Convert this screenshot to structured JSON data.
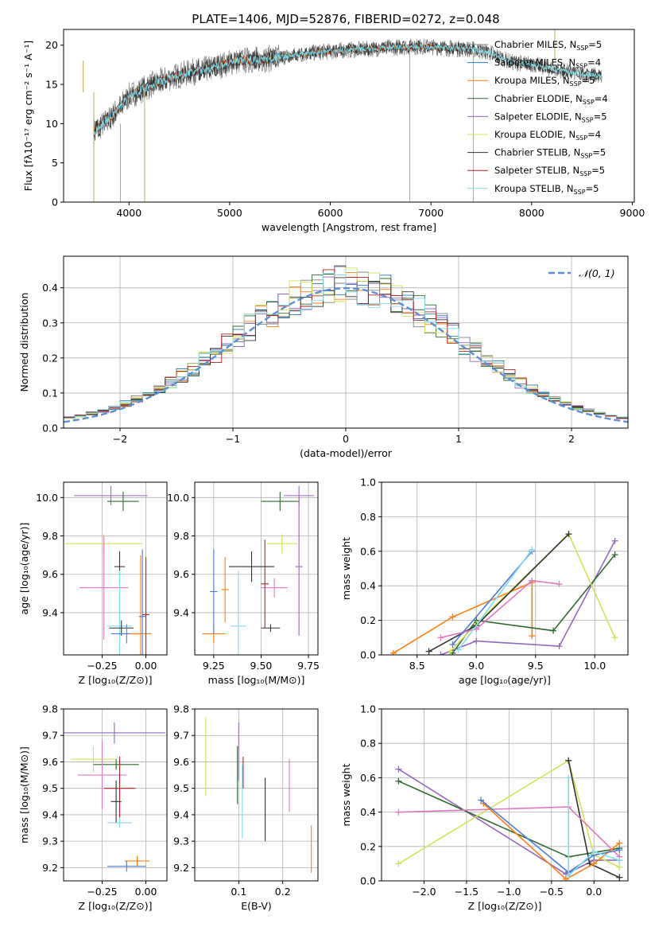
{
  "figure_title": "PLATE=1406, MJD=52876, FIBERID=0272, z=0.048",
  "series_styles": [
    {
      "name": "Chabrier MILES",
      "nssp": "5",
      "color": "#808080"
    },
    {
      "name": "Salpeter MILES",
      "nssp": "4",
      "color": "#1f77b4"
    },
    {
      "name": "Kroupa MILES",
      "nssp": "5",
      "color": "#ff7f0e"
    },
    {
      "name": "Chabrier ELODIE",
      "nssp": "4",
      "color": "#2e6b2e"
    },
    {
      "name": "Salpeter ELODIE",
      "nssp": "5",
      "color": "#9467bd"
    },
    {
      "name": "Kroupa ELODIE",
      "nssp": "4",
      "color": "#d4e157"
    },
    {
      "name": "Chabrier STELIB",
      "nssp": "5",
      "color": "#333333"
    },
    {
      "name": "Salpeter STELIB",
      "nssp": "5",
      "color": "#b22222"
    },
    {
      "name": "Kroupa STELIB",
      "nssp": "5",
      "color": "#80deea"
    }
  ],
  "chart_data": [
    {
      "id": "spectrum",
      "type": "line",
      "xlabel": "wavelength [Angstrom, rest frame]",
      "ylabel": "Flux [fλ10⁻¹⁷ erg cm⁻² s⁻¹ A⁻¹]",
      "xlim": [
        3350,
        9020
      ],
      "ylim": [
        0,
        22
      ],
      "xticks": [
        4000,
        5000,
        6000,
        7000,
        8000,
        9000
      ],
      "yticks": [
        0,
        5,
        10,
        15,
        20
      ],
      "grid": false,
      "legend": "top-right",
      "x": [
        3650,
        3800,
        4000,
        4200,
        4400,
        4600,
        4800,
        5000,
        5200,
        5400,
        5600,
        5800,
        6000,
        6200,
        6400,
        6600,
        6800,
        7000,
        7200,
        7400,
        7600,
        7800,
        8000,
        8200,
        8400,
        8600,
        8700
      ],
      "y": [
        9.0,
        10.5,
        13.5,
        14.8,
        15.8,
        16.5,
        17.0,
        17.8,
        18.1,
        18.3,
        18.6,
        19.0,
        19.2,
        19.4,
        19.5,
        19.7,
        19.8,
        19.8,
        19.6,
        19.5,
        19.0,
        17.8,
        17.6,
        17.0,
        16.5,
        16.2,
        16.0
      ]
    },
    {
      "id": "residuals",
      "type": "line",
      "xlabel": "(data-model)/error",
      "ylabel": "Normed distribution",
      "xlim": [
        -2.5,
        2.5
      ],
      "ylim": [
        0,
        0.49
      ],
      "xticks": [
        -2,
        -1,
        0,
        1,
        2
      ],
      "yticks": [
        0.0,
        0.1,
        0.2,
        0.3,
        0.4
      ],
      "grid": true,
      "legend": "top-right",
      "legend_label": "𝒩(0, 1)",
      "gaussian": {
        "mu": 0,
        "sigma": 1
      }
    },
    {
      "id": "age-vs-z",
      "type": "scatter",
      "error_bars": true,
      "xlabel": "Z [log₁₀(Z/Z⊙)]",
      "ylabel": "age  [log₁₀(age/yr)]",
      "xlim": [
        -0.47,
        0.12
      ],
      "ylim": [
        9.18,
        10.08
      ],
      "xticks": [
        -0.25,
        0.0
      ],
      "yticks": [
        9.4,
        9.6,
        9.8,
        10.0
      ],
      "grid": true,
      "points": [
        {
          "x": -0.2,
          "y": 10.01,
          "xe": 0.21,
          "ye": 0.05,
          "color": "#9467bd"
        },
        {
          "x": -0.13,
          "y": 9.98,
          "xe": 0.09,
          "ye": 0.05,
          "color": "#2e6b2e"
        },
        {
          "x": -0.24,
          "y": 9.76,
          "xe": 0.22,
          "ye": 0.05,
          "color": "#d4e157"
        },
        {
          "x": -0.15,
          "y": 9.64,
          "xe": 0.03,
          "ye": 0.08,
          "color": "#333333"
        },
        {
          "x": -0.24,
          "y": 9.53,
          "xe": 0.14,
          "ye": 0.27,
          "color": "#e377c2"
        },
        {
          "x": -0.15,
          "y": 9.33,
          "xe": 0.07,
          "ye": 0.29,
          "color": "#80deea"
        },
        {
          "x": -0.14,
          "y": 9.32,
          "xe": 0.07,
          "ye": 0.04,
          "color": "#333333"
        },
        {
          "x": -0.11,
          "y": 9.29,
          "xe": 0.09,
          "ye": 0.05,
          "color": "#4c7bd9"
        },
        {
          "x": -0.03,
          "y": 9.29,
          "xe": 0.06,
          "ye": 0.41,
          "color": "#ff7f0e"
        },
        {
          "x": -0.02,
          "y": 9.38,
          "xe": 0.02,
          "ye": 0.35,
          "color": "#4c7bd9"
        },
        {
          "x": 0.0,
          "y": 9.39,
          "xe": 0.02,
          "ye": 0.3,
          "color": "#b22222"
        }
      ]
    },
    {
      "id": "age-vs-mass",
      "type": "scatter",
      "error_bars": true,
      "xlabel": "mass [log₁₀(M/M⊙)]",
      "ylabel": "",
      "xlim": [
        9.15,
        9.8
      ],
      "ylim": [
        9.18,
        10.08
      ],
      "xticks": [
        9.25,
        9.5,
        9.75
      ],
      "yticks": [
        9.4,
        9.6,
        9.8,
        10.0
      ],
      "grid": true,
      "points": [
        {
          "x": 9.7,
          "y": 10.01,
          "xe": 0.08,
          "ye": 0.05,
          "color": "#9467bd"
        },
        {
          "x": 9.6,
          "y": 9.98,
          "xe": 0.1,
          "ye": 0.05,
          "color": "#2e6b2e"
        },
        {
          "x": 9.61,
          "y": 9.76,
          "xe": 0.08,
          "ye": 0.05,
          "color": "#d4e157"
        },
        {
          "x": 9.45,
          "y": 9.64,
          "xe": 0.12,
          "ye": 0.08,
          "color": "#333333"
        },
        {
          "x": 9.57,
          "y": 9.53,
          "xe": 0.07,
          "ye": 0.05,
          "color": "#e377c2"
        },
        {
          "x": 9.38,
          "y": 9.33,
          "xe": 0.04,
          "ye": 0.29,
          "color": "#80deea"
        },
        {
          "x": 9.55,
          "y": 9.32,
          "xe": 0.05,
          "ye": 0.02,
          "color": "#333333"
        },
        {
          "x": 9.25,
          "y": 9.29,
          "xe": 0.06,
          "ye": 0.05,
          "color": "#ff7f0e"
        },
        {
          "x": 9.25,
          "y": 9.51,
          "xe": 0.02,
          "ye": 0.22,
          "color": "#4c7bd9"
        },
        {
          "x": 9.31,
          "y": 9.52,
          "xe": 0.02,
          "ye": 0.17,
          "color": "#ff7f0e"
        },
        {
          "x": 9.52,
          "y": 9.55,
          "xe": 0.02,
          "ye": 0.23,
          "color": "#b22222"
        },
        {
          "x": 9.7,
          "y": 9.64,
          "xe": 0.02,
          "ye": 0.36,
          "color": "#9467bd"
        }
      ]
    },
    {
      "id": "weight-vs-age",
      "type": "line",
      "xlabel": "age  [log₁₀(age/yr)]",
      "ylabel": "mass weight",
      "xlim": [
        8.2,
        10.28
      ],
      "ylim": [
        0,
        1
      ],
      "xticks": [
        8.5,
        9.0,
        9.5,
        10.0
      ],
      "yticks": [
        0.0,
        0.2,
        0.4,
        0.6,
        0.8,
        1.0
      ],
      "grid": true,
      "series": [
        {
          "color": "#ff7f0e",
          "x": [
            8.3,
            8.8,
            9.47,
            9.47
          ],
          "y": [
            0.01,
            0.22,
            0.42,
            0.11
          ]
        },
        {
          "color": "#9467bd",
          "x": [
            8.7,
            9.0,
            9.7,
            10.17
          ],
          "y": [
            0.0,
            0.08,
            0.05,
            0.66
          ]
        },
        {
          "color": "#2e6b2e",
          "x": [
            8.8,
            9.0,
            9.65,
            10.17
          ],
          "y": [
            0.01,
            0.2,
            0.14,
            0.58
          ]
        },
        {
          "color": "#d4e157",
          "x": [
            8.78,
            9.0,
            9.78,
            10.17
          ],
          "y": [
            0.02,
            0.18,
            0.7,
            0.1
          ]
        },
        {
          "color": "#333333",
          "x": [
            8.6,
            9.0,
            9.78
          ],
          "y": [
            0.02,
            0.17,
            0.7
          ]
        },
        {
          "color": "#e377c2",
          "x": [
            8.7,
            9.0,
            9.47,
            9.7
          ],
          "y": [
            0.1,
            0.15,
            0.43,
            0.41
          ]
        },
        {
          "color": "#4c7bd9",
          "x": [
            8.8,
            9.47
          ],
          "y": [
            0.06,
            0.6
          ]
        },
        {
          "color": "#80deea",
          "x": [
            8.85,
            9.47
          ],
          "y": [
            0.03,
            0.61
          ]
        }
      ]
    },
    {
      "id": "mass-vs-z",
      "type": "scatter",
      "error_bars": true,
      "xlabel": "Z [log₁₀(Z/Z⊙)]",
      "ylabel": "mass [log₁₀(M/M⊙)]",
      "xlim": [
        -0.47,
        0.12
      ],
      "ylim": [
        9.15,
        9.8
      ],
      "xticks": [
        -0.25,
        0.0
      ],
      "yticks": [
        9.2,
        9.3,
        9.4,
        9.5,
        9.6,
        9.7,
        9.8
      ],
      "grid": true,
      "points": [
        {
          "x": -0.18,
          "y": 9.71,
          "xe": 0.29,
          "ye": 0.04,
          "color": "#9467bd"
        },
        {
          "x": -0.3,
          "y": 9.61,
          "xe": 0.13,
          "ye": 0.05,
          "color": "#d4e157"
        },
        {
          "x": -0.17,
          "y": 9.59,
          "xe": 0.13,
          "ye": 0.02,
          "color": "#2e6b2e"
        },
        {
          "x": -0.25,
          "y": 9.55,
          "xe": 0.14,
          "ye": 0.13,
          "color": "#e377c2"
        },
        {
          "x": -0.15,
          "y": 9.5,
          "xe": 0.09,
          "ye": 0.12,
          "color": "#b22222"
        },
        {
          "x": -0.17,
          "y": 9.45,
          "xe": 0.03,
          "ye": 0.08,
          "color": "#333333"
        },
        {
          "x": -0.15,
          "y": 9.37,
          "xe": 0.07,
          "ye": 0.02,
          "color": "#80deea"
        },
        {
          "x": -0.05,
          "y": 9.225,
          "xe": 0.07,
          "ye": 0.02,
          "color": "#ff7f0e"
        },
        {
          "x": -0.11,
          "y": 9.205,
          "xe": 0.11,
          "ye": 0.02,
          "color": "#4c7bd9"
        }
      ]
    },
    {
      "id": "mass-vs-ebv",
      "type": "scatter",
      "error_bars": true,
      "xlabel": "E(B-V)",
      "ylabel": "",
      "xlim": [
        0.0,
        0.28
      ],
      "ylim": [
        9.15,
        9.8
      ],
      "xticks": [
        0.1,
        0.2
      ],
      "yticks": [
        9.2,
        9.3,
        9.4,
        9.5,
        9.6,
        9.7,
        9.8
      ],
      "grid": true,
      "points": [
        {
          "x": 0.025,
          "y": 9.62,
          "xe": 0,
          "ye": 0.15,
          "color": "#d4e157"
        },
        {
          "x": 0.1,
          "y": 9.64,
          "xe": 0,
          "ye": 0.11,
          "color": "#9467bd"
        },
        {
          "x": 0.097,
          "y": 9.55,
          "xe": 0,
          "ye": 0.11,
          "color": "#2e6b2e"
        },
        {
          "x": 0.11,
          "y": 9.56,
          "xe": 0,
          "ye": 0.06,
          "color": "#b22222"
        },
        {
          "x": 0.108,
          "y": 9.45,
          "xe": 0,
          "ye": 0.14,
          "color": "#80deea"
        },
        {
          "x": 0.16,
          "y": 9.42,
          "xe": 0,
          "ye": 0.12,
          "color": "#333333"
        },
        {
          "x": 0.215,
          "y": 9.51,
          "xe": 0,
          "ye": 0.1,
          "color": "#e377c2"
        },
        {
          "x": 0.265,
          "y": 9.27,
          "xe": 0,
          "ye": 0.09,
          "color": "#ff7f0e"
        }
      ]
    },
    {
      "id": "weight-vs-z",
      "type": "line",
      "xlabel": "Z [log₁₀(Z/Z⊙)]",
      "ylabel": "mass weight",
      "xlim": [
        -2.5,
        0.4
      ],
      "ylim": [
        0,
        1
      ],
      "xticks": [
        -2.0,
        -1.5,
        -1.0,
        -0.5,
        0.0
      ],
      "yticks": [
        0.0,
        0.2,
        0.4,
        0.6,
        0.8,
        1.0
      ],
      "grid": true,
      "series": [
        {
          "color": "#9467bd",
          "x": [
            -2.3,
            -0.33,
            0.0,
            0.3
          ],
          "y": [
            0.65,
            0.04,
            0.12,
            0.12
          ]
        },
        {
          "color": "#2e6b2e",
          "x": [
            -2.3,
            -0.3,
            0.3
          ],
          "y": [
            0.58,
            0.14,
            0.19
          ]
        },
        {
          "color": "#d4e157",
          "x": [
            -2.3,
            -0.3,
            0.0,
            0.3
          ],
          "y": [
            0.1,
            0.7,
            0.15,
            0.08
          ]
        },
        {
          "color": "#333333",
          "x": [
            -0.3,
            -0.05,
            0.3
          ],
          "y": [
            0.7,
            0.1,
            0.02
          ]
        },
        {
          "color": "#e377c2",
          "x": [
            -2.3,
            -0.3,
            0.3
          ],
          "y": [
            0.4,
            0.43,
            0.14
          ]
        },
        {
          "color": "#ff7f0e",
          "x": [
            -1.3,
            -0.33,
            0.0,
            0.3
          ],
          "y": [
            0.45,
            0.01,
            0.1,
            0.22
          ]
        },
        {
          "color": "#4c7bd9",
          "x": [
            -1.33,
            -0.3,
            0.0,
            0.3
          ],
          "y": [
            0.47,
            0.05,
            0.15,
            0.18
          ]
        },
        {
          "color": "#80deea",
          "x": [
            -0.3,
            -0.3,
            0.0,
            0.3
          ],
          "y": [
            0.6,
            0.03,
            0.17,
            0.12
          ]
        }
      ]
    }
  ]
}
